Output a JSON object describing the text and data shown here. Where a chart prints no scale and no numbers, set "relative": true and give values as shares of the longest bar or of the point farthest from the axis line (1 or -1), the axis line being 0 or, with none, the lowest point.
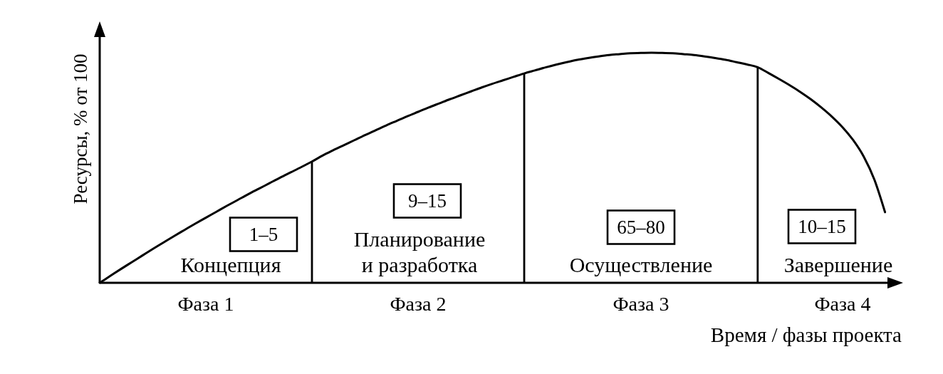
{
  "chart_data": {
    "type": "line",
    "relative": true,
    "xlabel": "Время / фазы проекта",
    "ylabel": "Ресурсы, % от 100",
    "tick_labels": "x",
    "categories": [
      null,
      null,
      null,
      null,
      null,
      null,
      null,
      null,
      null,
      null,
      "Фаза 1",
      null,
      null,
      null,
      null,
      null,
      null,
      null,
      null,
      null,
      null,
      null,
      null,
      null,
      null,
      null,
      null,
      null,
      null,
      null,
      "Фаза 2",
      null,
      null,
      null,
      null,
      null,
      null,
      null,
      null,
      null,
      null,
      null,
      null,
      null,
      null,
      null,
      null,
      null,
      null,
      null,
      null,
      "Фаза 3",
      null,
      null,
      null,
      null,
      null,
      null,
      null,
      null,
      null,
      null,
      null,
      null,
      null,
      null,
      null,
      null,
      null,
      null,
      "Фаза 4",
      null,
      null,
      null,
      null
    ],
    "series": [
      {
        "color": "#000000",
        "values": [
          0,
          0.03,
          0.06,
          0.089,
          0.118,
          0.147,
          0.175,
          0.203,
          0.23,
          0.257,
          0.283,
          0.309,
          0.335,
          0.36,
          0.385,
          0.409,
          0.433,
          0.457,
          0.48,
          0.503,
          0.527,
          0.553,
          0.576,
          0.598,
          0.62,
          0.642,
          0.663,
          0.684,
          0.704,
          0.724,
          0.743,
          0.762,
          0.78,
          0.798,
          0.815,
          0.832,
          0.849,
          0.865,
          0.88,
          0.895,
          0.91,
          0.923,
          0.936,
          0.948,
          0.959,
          0.969,
          0.977,
          0.984,
          0.99,
          0.994,
          0.998,
          0.999,
          1,
          0.999,
          0.998,
          0.994,
          0.99,
          0.984,
          0.977,
          0.969,
          0.959,
          0.949,
          0.937,
          0.912,
          0.886,
          0.859,
          0.83,
          0.798,
          0.762,
          0.722,
          0.676,
          0.62,
          0.548,
          0.448,
          0.307
        ]
      },
      {
        "type": "bar",
        "color": "#000000",
        "values": [
          null,
          null,
          null,
          null,
          null,
          null,
          null,
          null,
          null,
          null,
          null,
          null,
          null,
          null,
          null,
          null,
          null,
          null,
          null,
          null,
          0.527,
          null,
          null,
          null,
          null,
          null,
          null,
          null,
          null,
          null,
          null,
          null,
          null,
          null,
          null,
          null,
          null,
          null,
          null,
          null,
          0.91,
          null,
          null,
          null,
          null,
          null,
          null,
          null,
          null,
          null,
          null,
          null,
          null,
          null,
          null,
          null,
          null,
          null,
          null,
          null,
          null,
          null,
          0.937,
          null,
          null,
          null,
          null,
          null,
          null,
          null,
          null,
          null,
          null,
          null,
          null
        ]
      }
    ],
    "annotations": [
      "1–5",
      "Концепция",
      "9–15",
      "Планирование\nи разработка",
      "65–80",
      "Осуществление",
      "10–15",
      "Завершение"
    ]
  }
}
